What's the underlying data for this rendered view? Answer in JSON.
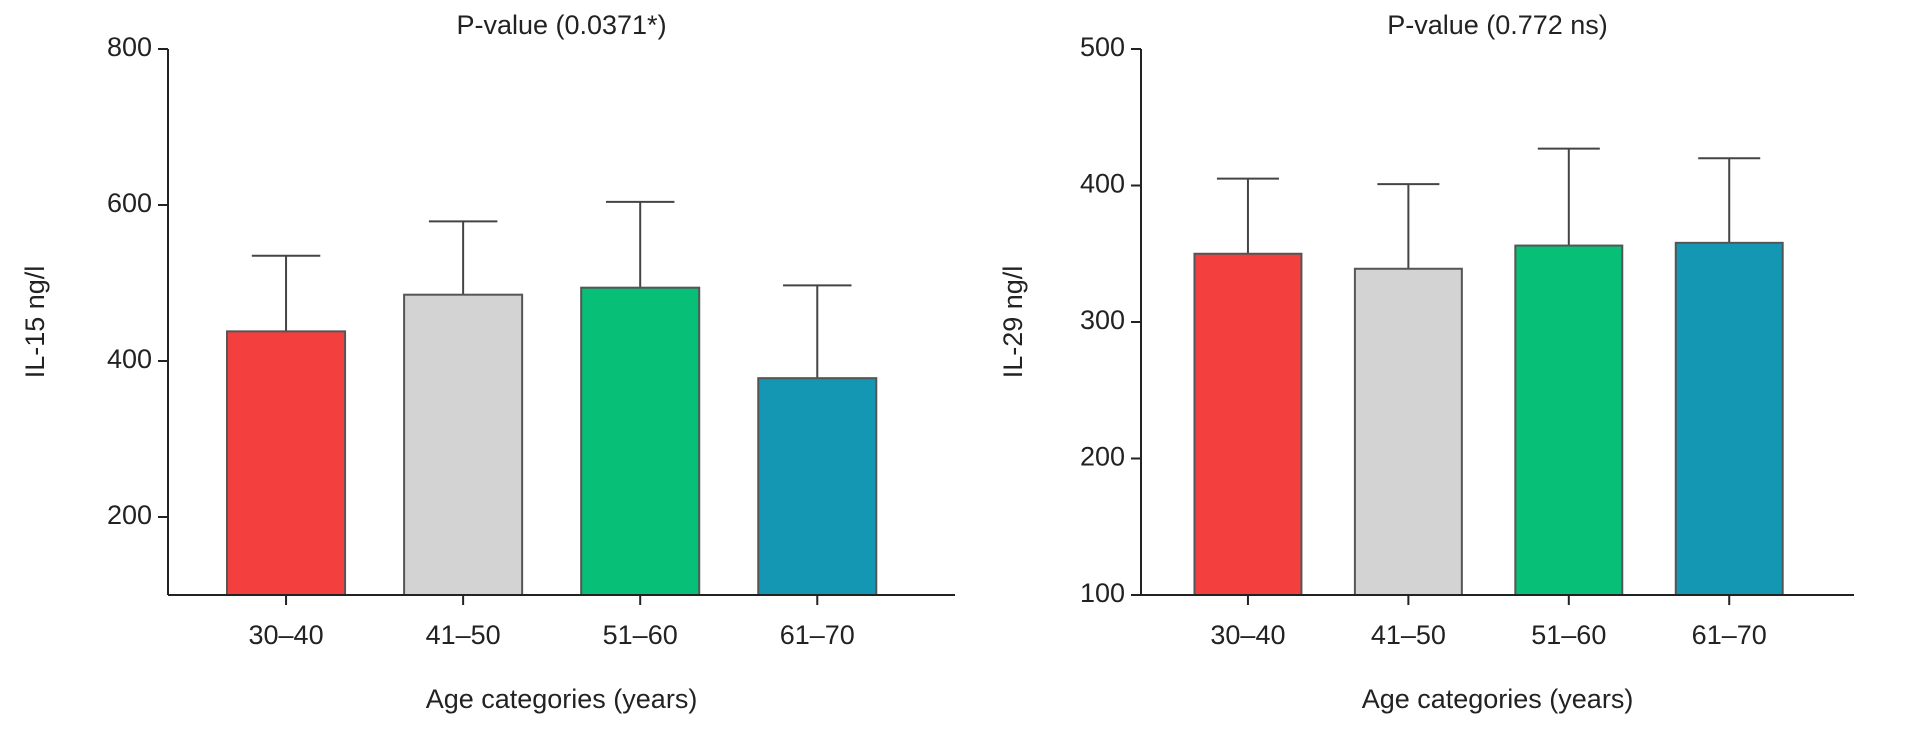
{
  "chart_data": [
    {
      "type": "bar",
      "title": "P-value (0.0371*)",
      "y_label": "IL-15 ng/l",
      "x_label": "Age categories (years)",
      "categories": [
        "30–40",
        "41–50",
        "51–60",
        "61–70"
      ],
      "values": [
        438,
        485,
        494,
        378
      ],
      "errors": [
        97,
        94,
        110,
        119
      ],
      "colors": [
        "#f43f3f",
        "#d3d3d3",
        "#08bf78",
        "#1397b2"
      ],
      "ylim": [
        100,
        800
      ],
      "yticks": [
        200,
        400,
        600,
        800
      ]
    },
    {
      "type": "bar",
      "title": "P-value (0.772 ns)",
      "y_label": "IL-29 ng/l",
      "x_label": "Age categories (years)",
      "categories": [
        "30–40",
        "41–50",
        "51–60",
        "61–70"
      ],
      "values": [
        350,
        339,
        356,
        358
      ],
      "errors": [
        55,
        62,
        71,
        62
      ],
      "colors": [
        "#f43f3f",
        "#d3d3d3",
        "#08bf78",
        "#1397b2"
      ],
      "ylim": [
        100,
        500
      ],
      "yticks": [
        100,
        200,
        300,
        400,
        500
      ]
    }
  ]
}
